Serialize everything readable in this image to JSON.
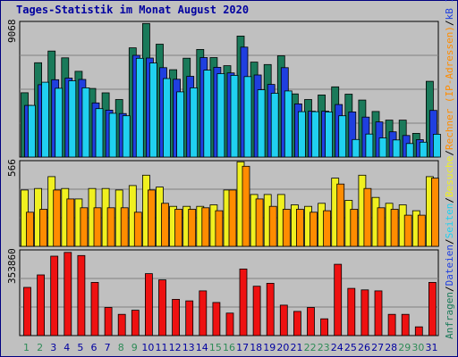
{
  "title": "Tages-Statistik im Monat August 2020",
  "colors": {
    "hits": "#1a7a5a",
    "files": "#1f3fe0",
    "pages": "#20d0f0",
    "visits": "#f0f020",
    "sites": "#ff8c00",
    "kbytes": "#ee1111",
    "day_normal": "#0000a0",
    "day_weekend": "#2e8b57"
  },
  "legend": [
    {
      "text": "Anfragen",
      "color": "#1a7a5a"
    },
    {
      "text": "/",
      "color": "#000000"
    },
    {
      "text": "Dateien",
      "color": "#1f3fe0"
    },
    {
      "text": "/",
      "color": "#000000"
    },
    {
      "text": "Seiten",
      "color": "#20d0f0"
    },
    {
      "text": "/",
      "color": "#000000"
    },
    {
      "text": "Besuche",
      "color": "#f0f020"
    },
    {
      "text": "/",
      "color": "#000000"
    },
    {
      "text": "Rechner (IP-Adressen)",
      "color": "#ff8c00"
    },
    {
      "text": "/",
      "color": "#000000"
    },
    {
      "text": "kB In",
      "color": "#1f3fe0"
    },
    {
      "text": "/",
      "color": "#000000"
    },
    {
      "text": "kB Out",
      "color": "#2e8b57"
    },
    {
      "text": "/",
      "color": "#000000"
    },
    {
      "text": "kB F",
      "color": "#ee1111"
    }
  ],
  "chart_data": {
    "type": "bar",
    "categories": [
      "1",
      "2",
      "3",
      "4",
      "5",
      "6",
      "7",
      "8",
      "9",
      "10",
      "11",
      "12",
      "13",
      "14",
      "15",
      "16",
      "17",
      "18",
      "19",
      "20",
      "21",
      "22",
      "23",
      "24",
      "25",
      "26",
      "27",
      "28",
      "29",
      "30",
      "31"
    ],
    "weekend_days": [
      "1",
      "2",
      "8",
      "9",
      "15",
      "16",
      "22",
      "23",
      "29",
      "30"
    ],
    "panels": [
      {
        "ymax_label": "9068",
        "ylim": [
          0,
          9068
        ],
        "series": [
          {
            "name": "Anfragen",
            "values": [
              4360,
              6390,
              7180,
              6720,
              5810,
              4650,
              4350,
              3900,
              7400,
              9050,
              7650,
              5920,
              6700,
              7290,
              6740,
              6190,
              8200,
              6430,
              6270,
              6860,
              4280,
              3900,
              4210,
              4760,
              4260,
              3860,
              3090,
              2500,
              2500,
              1610,
              5130
            ]
          },
          {
            "name": "Dateien",
            "values": [
              3500,
              4900,
              5240,
              5350,
              5260,
              3670,
              3180,
              2950,
              6890,
              6710,
              6060,
              5270,
              5470,
              6740,
              6080,
              5700,
              7450,
              5560,
              4920,
              6060,
              3600,
              3110,
              3110,
              3560,
              3060,
              2710,
              2380,
              1710,
              1460,
              1180,
              3160
            ]
          },
          {
            "name": "Seiten",
            "values": [
              3500,
              5070,
              4660,
              5170,
              4690,
              3280,
              2970,
              2800,
              6690,
              6370,
              5320,
              4420,
              4690,
              5890,
              5650,
              5540,
              5450,
              4560,
              4320,
              4480,
              3080,
              3080,
              3060,
              2800,
              1190,
              1560,
              1300,
              1160,
              920,
              1010,
              1550
            ]
          }
        ]
      },
      {
        "ymax_label": "566",
        "ylim": [
          0,
          566
        ],
        "series": [
          {
            "name": "Besuche",
            "values": [
              380,
              390,
              470,
              390,
              320,
              390,
              390,
              380,
              410,
              480,
              400,
              270,
              270,
              270,
              280,
              380,
              570,
              350,
              350,
              350,
              280,
              270,
              290,
              460,
              310,
              480,
              330,
              290,
              280,
              240,
              470
            ]
          },
          {
            "name": "Rechner (IP-Adressen)",
            "values": [
              230,
              250,
              380,
              320,
              260,
              260,
              260,
              260,
              230,
              380,
              290,
              250,
              250,
              260,
              240,
              380,
              540,
              320,
              270,
              250,
              250,
              230,
              240,
              420,
              250,
              390,
              260,
              250,
              210,
              210,
              460
            ]
          }
        ]
      },
      {
        "ymax_label": "353860",
        "ylim": [
          0,
          353860
        ],
        "series": [
          {
            "name": "kB F",
            "values": [
              203130,
              255920,
              334980,
              350780,
              337600,
              224240,
              118710,
              89680,
              106830,
              261190,
              234800,
              153000,
              146410,
              188640,
              139820,
              95000,
              280930,
              208030,
              220570,
              128470,
              102070,
              118710,
              70870,
              300720,
              199310,
              192740,
              188640,
              89680,
              89680,
              36930,
              224240
            ]
          }
        ]
      }
    ]
  }
}
